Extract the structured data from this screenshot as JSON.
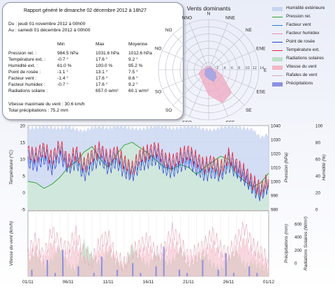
{
  "report": {
    "title": "Rapport généré le dimanche 02 décembre 2012 à 18h27",
    "du": "Du : jeudi 01 novembre 2012 à 00h00",
    "au": "Au : samedi 01 décembre 2012 à 00h00",
    "headers": [
      "Min",
      "Max",
      "Moyenne"
    ],
    "rows": [
      {
        "label": "Pression rel. :",
        "min": "984.5 hPa",
        "max": "1031.6 hPa",
        "moy": "1012.6 hPa"
      },
      {
        "label": "Température ext. :",
        "min": "-0.7 °",
        "max": "17.6 °",
        "moy": "9.2 °"
      },
      {
        "label": "Humidité ext. :",
        "min": "61.0 %",
        "max": "100.0 %",
        "moy": "95.2 %"
      },
      {
        "label": "Point de rosée :",
        "min": "-1.1 °",
        "max": "13.1 °",
        "moy": "7.5 °"
      },
      {
        "label": "Facteur vent :",
        "min": "-1.4 °",
        "max": "17.6 °",
        "moy": "8.6 °"
      },
      {
        "label": "Facteur humidex :",
        "min": "-0.7 °",
        "max": "17.6 °",
        "moy": "9.2 °"
      },
      {
        "label": "Radiations solaire :",
        "min": "",
        "max": "657.0 w/m²",
        "moy": "60.1 w/m²"
      }
    ],
    "wind_max": "Vitesse maximale du vent : 30.6 km/h",
    "precip": "Total précipitations : 75.2 mm"
  },
  "rose": {
    "title": "Vents dominants",
    "directions": [
      "N",
      "NNE",
      "NE",
      "ENE",
      "E",
      "ESE",
      "SE",
      "SSE",
      "S",
      "SSO",
      "SO",
      "OSO",
      "O",
      "ONO",
      "NO",
      "NNO"
    ],
    "ring_labels": [
      "0",
      "2",
      "4",
      "6",
      "8",
      "10",
      "12",
      "14"
    ],
    "frequency": [
      1,
      1,
      1,
      1,
      2,
      4,
      9,
      10,
      7,
      4,
      3,
      3,
      2,
      1,
      1,
      1
    ],
    "speed": [
      0.5,
      0.5,
      0.5,
      1,
      1,
      2,
      3,
      3.5,
      2.5,
      2,
      1.5,
      1,
      1,
      0.5,
      0.5,
      0.5
    ],
    "fill_color": "#f0a8c0",
    "inner_color": "#9aa3e6"
  },
  "legend": [
    {
      "label": "Humidité extérieure",
      "color": "#c8d4f0",
      "style": "area"
    },
    {
      "label": "Pression rel.",
      "color": "#2ca02c",
      "style": "line"
    },
    {
      "label": "Facteur vent",
      "color": "#2b7fd0",
      "style": "line"
    },
    {
      "label": "Facteur humidex",
      "color": "#f08bb5",
      "style": "line"
    },
    {
      "label": "Point de rosée",
      "color": "#2a3fd8",
      "style": "line"
    },
    {
      "label": "Température ext.",
      "color": "#e8203a",
      "style": "line"
    },
    {
      "label": "Radiations solaires",
      "color": "#bde0c4",
      "style": "area"
    },
    {
      "label": "Vitesse du vent",
      "color": "#f4b6c4",
      "style": "area"
    },
    {
      "label": "Rafales de vent",
      "color": "#e3a6b6",
      "style": "line"
    },
    {
      "label": "Précipitations",
      "color": "#8c8fe0",
      "style": "area"
    }
  ],
  "chart_data": [
    {
      "type": "line",
      "xlabel": "",
      "ylabel_left": "Température (°C)",
      "ylabel_right1": "Pression (hPa)",
      "ylabel_right2": "Humidité (%)",
      "ylim": [
        -5,
        20
      ],
      "yticks": [
        "20",
        "15",
        "10",
        "5",
        "0",
        "-5"
      ],
      "y2ticks": [
        "1040",
        "1030",
        "1020",
        "1010",
        "1000",
        "990",
        "980"
      ],
      "y3ticks": [
        "100",
        "80",
        "60",
        "40",
        "20",
        "0"
      ],
      "y2lim": [
        980,
        1040
      ],
      "y3lim": [
        0,
        100
      ],
      "day_count": 30,
      "series": [
        {
          "name": "Humidité extérieure",
          "axis": "y3",
          "values": [
            96,
            97,
            98,
            97,
            96,
            98,
            95,
            93,
            97,
            98,
            96,
            99,
            98,
            96,
            95,
            97,
            99,
            98,
            96,
            97,
            99,
            98,
            95,
            94,
            97,
            99,
            98,
            96,
            95,
            85,
            90
          ]
        },
        {
          "name": "Pression rel.",
          "axis": "y2",
          "values": [
            1000,
            999,
            995,
            998,
            1003,
            1010,
            1014,
            1021,
            1025,
            1016,
            1010,
            1019,
            1026,
            1028,
            1024,
            1020,
            1015,
            1010,
            1009,
            1012,
            1010,
            1005,
            1010,
            1014,
            1018,
            1016,
            1005,
            1000,
            996,
            999,
            1006
          ]
        },
        {
          "name": "Température ext.",
          "axis": "y",
          "values": [
            12,
            11,
            13,
            10,
            14,
            9,
            12,
            8,
            11,
            13,
            10,
            12,
            9,
            7,
            11,
            12,
            13,
            10,
            9,
            11,
            12,
            10,
            8,
            9,
            7,
            11,
            8,
            6,
            3,
            1,
            4
          ]
        },
        {
          "name": "Point de rosée",
          "axis": "y",
          "values": [
            9,
            8,
            10,
            7,
            11,
            7,
            9,
            5,
            8,
            10,
            7,
            9,
            6,
            5,
            8,
            9,
            10,
            7,
            6,
            8,
            9,
            7,
            5,
            6,
            5,
            8,
            6,
            4,
            1,
            -1,
            2
          ]
        },
        {
          "name": "Facteur vent",
          "axis": "y",
          "values": [
            11,
            10,
            12,
            9,
            13,
            8,
            11,
            7,
            10,
            12,
            9,
            11,
            8,
            6,
            10,
            11,
            12,
            9,
            8,
            10,
            11,
            9,
            7,
            8,
            6,
            10,
            7,
            5,
            2,
            0,
            3
          ]
        }
      ]
    },
    {
      "type": "area",
      "xlabel": "",
      "ylabel_left": "Vitesse du vent (km/h)",
      "ylabel_right1": "Précipitations (mm)",
      "ylabel_right2": "Radiations Solaires (W/m²)",
      "x_tick_labels": [
        "01/11",
        "06/11",
        "11/11",
        "16/11",
        "21/11",
        "26/11",
        "01/12"
      ],
      "y2ticks": [
        "600",
        "400",
        "200",
        "0"
      ],
      "ylim": [
        0,
        30
      ],
      "y2lim": [
        0,
        600
      ],
      "series": [
        {
          "name": "Vitesse du vent",
          "axis": "y",
          "values": [
            8,
            12,
            6,
            15,
            10,
            9,
            14,
            7,
            5,
            11,
            13,
            6,
            4,
            8,
            10,
            12,
            7,
            9,
            15,
            11,
            6,
            8,
            10,
            14,
            9,
            7,
            12,
            16,
            10,
            8,
            5
          ]
        },
        {
          "name": "Radiations solaires",
          "axis": "y3",
          "values": [
            120,
            200,
            80,
            150,
            250,
            90,
            60,
            300,
            180,
            100,
            220,
            140,
            70,
            260,
            160,
            90,
            200,
            110,
            130,
            240,
            80,
            150,
            190,
            100,
            60,
            170,
            210,
            90,
            120,
            80,
            50
          ]
        },
        {
          "name": "Précipitations",
          "axis": "y2",
          "values": [
            2,
            0,
            5,
            1,
            8,
            0,
            3,
            0,
            1,
            6,
            0,
            2,
            0,
            4,
            1,
            0,
            3,
            9,
            0,
            2,
            1,
            0,
            5,
            0,
            2,
            7,
            1,
            0,
            3,
            1,
            0
          ]
        }
      ]
    }
  ]
}
